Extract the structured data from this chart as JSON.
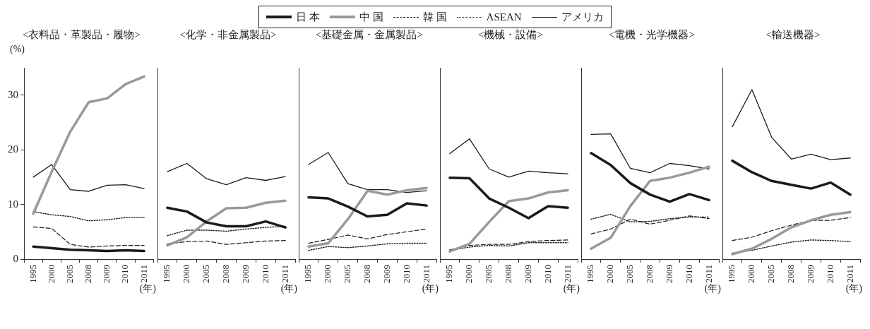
{
  "chart_data": [
    {
      "type": "line",
      "title": "<衣料品・革製品・履物>",
      "ylabel": "(%)",
      "xlabel": "(年)",
      "categories": [
        "1995",
        "2000",
        "2005",
        "2008",
        "2009",
        "2010",
        "2011"
      ],
      "ylim": [
        0,
        35
      ],
      "yticks": [
        0,
        10,
        20,
        30
      ],
      "grid": false,
      "legend": "top",
      "marker": "none",
      "series": [
        {
          "name": "日 本",
          "color": "#1a1a1a",
          "line_style": "solid",
          "values": [
            2.3,
            2.0,
            1.7,
            1.6,
            1.5,
            1.6,
            1.5
          ]
        },
        {
          "name": "中 国",
          "color": "#999999",
          "line_style": "solid",
          "values": [
            8.3,
            16,
            23.3,
            28.7,
            29.4,
            32,
            33.4
          ]
        },
        {
          "name": "韓 国",
          "color": "#1a1a1a",
          "line_style": "dashed",
          "values": [
            5.9,
            5.6,
            2.7,
            2.2,
            2.4,
            2.5,
            2.5
          ]
        },
        {
          "name": "ASEAN",
          "color": "#1a1a1a",
          "line_style": "dotted",
          "values": [
            8.7,
            8.1,
            7.8,
            7.0,
            7.2,
            7.6,
            7.6
          ]
        },
        {
          "name": "アメリカ",
          "color": "#1a1a1a",
          "line_style": "solid",
          "values": [
            15,
            17.3,
            12.7,
            12.4,
            13.5,
            13.6,
            12.9
          ]
        }
      ]
    },
    {
      "type": "line",
      "title": "<化学・非金属製品>",
      "xlabel": "(年)",
      "categories": [
        "1995",
        "2000",
        "2005",
        "2008",
        "2009",
        "2010",
        "2011"
      ],
      "ylim": [
        0,
        35
      ],
      "yticks": [
        0,
        10,
        20,
        30
      ],
      "tick_labels": "x",
      "grid": false,
      "marker": "none",
      "series": [
        {
          "color": "#1a1a1a",
          "line_style": "solid",
          "values": [
            9.4,
            8.7,
            6.7,
            6.0,
            6.0,
            6.9,
            5.8
          ]
        },
        {
          "color": "#999999",
          "line_style": "solid",
          "values": [
            2.5,
            4.0,
            6.9,
            9.3,
            9.4,
            10.3,
            10.7
          ]
        },
        {
          "color": "#1a1a1a",
          "line_style": "dashed",
          "values": [
            2.8,
            3.2,
            3.3,
            2.7,
            3.0,
            3.3,
            3.4
          ]
        },
        {
          "color": "#1a1a1a",
          "line_style": "dotted",
          "values": [
            4.3,
            5.3,
            5.3,
            5.1,
            5.5,
            5.8,
            6.0
          ]
        },
        {
          "color": "#1a1a1a",
          "line_style": "solid",
          "values": [
            16,
            17.5,
            14.7,
            13.6,
            14.9,
            14.4,
            15.1
          ]
        }
      ]
    },
    {
      "type": "line",
      "title": "<基礎金属・金属製品>",
      "xlabel": "(年)",
      "categories": [
        "1995",
        "2000",
        "2005",
        "2008",
        "2009",
        "2010",
        "2011"
      ],
      "ylim": [
        0,
        35
      ],
      "yticks": [
        0,
        10,
        20,
        30
      ],
      "tick_labels": "x",
      "grid": false,
      "marker": "none",
      "series": [
        {
          "color": "#1a1a1a",
          "line_style": "solid",
          "values": [
            11.3,
            11.1,
            9.6,
            7.8,
            8.1,
            10.2,
            9.8
          ]
        },
        {
          "color": "#999999",
          "line_style": "solid",
          "values": [
            2.3,
            2.9,
            7.3,
            12.5,
            11.8,
            12.6,
            13.0
          ]
        },
        {
          "color": "#1a1a1a",
          "line_style": "dashed",
          "values": [
            2.9,
            3.6,
            4.4,
            3.7,
            4.5,
            5.0,
            5.5
          ]
        },
        {
          "color": "#1a1a1a",
          "line_style": "dotted",
          "values": [
            1.6,
            2.3,
            2.1,
            2.4,
            2.8,
            2.9,
            2.9
          ]
        },
        {
          "color": "#1a1a1a",
          "line_style": "solid",
          "values": [
            17.3,
            19.5,
            13.8,
            12.7,
            12.7,
            12.2,
            12.5
          ]
        }
      ]
    },
    {
      "type": "line",
      "title": "<機械・設備>",
      "xlabel": "(年)",
      "categories": [
        "1995",
        "2000",
        "2005",
        "2008",
        "2009",
        "2010",
        "2011"
      ],
      "ylim": [
        0,
        35
      ],
      "yticks": [
        0,
        10,
        20,
        30
      ],
      "tick_labels": "x",
      "grid": false,
      "marker": "none",
      "series": [
        {
          "color": "#1a1a1a",
          "line_style": "solid",
          "values": [
            14.9,
            14.8,
            11.1,
            9.4,
            7.5,
            9.7,
            9.4
          ]
        },
        {
          "color": "#999999",
          "line_style": "solid",
          "values": [
            1.4,
            2.8,
            6.8,
            10.6,
            11.1,
            12.2,
            12.6
          ]
        },
        {
          "color": "#1a1a1a",
          "line_style": "dashed",
          "values": [
            1.7,
            2.5,
            2.7,
            2.7,
            3.2,
            3.4,
            3.5
          ]
        },
        {
          "color": "#1a1a1a",
          "line_style": "dotted",
          "values": [
            1.6,
            2.2,
            2.5,
            2.4,
            3.0,
            3.0,
            3.0
          ]
        },
        {
          "color": "#1a1a1a",
          "line_style": "solid",
          "values": [
            19.3,
            22.0,
            16.5,
            15.0,
            16.1,
            15.8,
            15.6
          ]
        }
      ]
    },
    {
      "type": "line",
      "title": "<電機・光学機器>",
      "xlabel": "(年)",
      "categories": [
        "1995",
        "2000",
        "2005",
        "2008",
        "2009",
        "2010",
        "2011"
      ],
      "ylim": [
        0,
        35
      ],
      "yticks": [
        0,
        10,
        20,
        30
      ],
      "tick_labels": "x",
      "grid": false,
      "marker": "none",
      "series": [
        {
          "color": "#1a1a1a",
          "line_style": "solid",
          "values": [
            19.4,
            17.2,
            13.9,
            11.8,
            10.5,
            11.9,
            10.8
          ]
        },
        {
          "color": "#999999",
          "line_style": "solid",
          "values": [
            1.9,
            3.9,
            9.7,
            14.3,
            14.9,
            15.8,
            16.9
          ]
        },
        {
          "color": "#1a1a1a",
          "line_style": "dashed",
          "values": [
            4.6,
            5.5,
            7.3,
            6.4,
            7.1,
            7.9,
            7.4
          ]
        },
        {
          "color": "#1a1a1a",
          "line_style": "dotted",
          "values": [
            7.3,
            8.2,
            6.8,
            6.9,
            7.4,
            7.7,
            7.7
          ]
        },
        {
          "color": "#1a1a1a",
          "line_style": "solid",
          "values": [
            22.8,
            22.9,
            16.6,
            15.8,
            17.5,
            17.1,
            16.5
          ]
        }
      ]
    },
    {
      "type": "line",
      "title": "<輸送機器>",
      "xlabel": "(年)",
      "categories": [
        "1995",
        "2000",
        "2005",
        "2008",
        "2009",
        "2010",
        "2011"
      ],
      "ylim": [
        0,
        35
      ],
      "yticks": [
        0,
        10,
        20,
        30
      ],
      "tick_labels": "x",
      "grid": false,
      "marker": "none",
      "series": [
        {
          "color": "#1a1a1a",
          "line_style": "solid",
          "values": [
            18.0,
            15.9,
            14.3,
            13.6,
            12.9,
            14.0,
            11.8
          ]
        },
        {
          "color": "#999999",
          "line_style": "solid",
          "values": [
            0.9,
            1.9,
            3.7,
            5.8,
            7.1,
            8.1,
            8.6
          ]
        },
        {
          "color": "#1a1a1a",
          "line_style": "dashed",
          "values": [
            3.4,
            4.0,
            5.2,
            6.2,
            7.1,
            7.1,
            7.6
          ]
        },
        {
          "color": "#1a1a1a",
          "line_style": "dotted",
          "values": [
            1.1,
            1.6,
            2.4,
            3.1,
            3.5,
            3.4,
            3.2
          ]
        },
        {
          "color": "#1a1a1a",
          "line_style": "solid",
          "values": [
            24.2,
            31.0,
            22.3,
            18.3,
            19.2,
            18.2,
            18.5
          ]
        }
      ]
    }
  ]
}
